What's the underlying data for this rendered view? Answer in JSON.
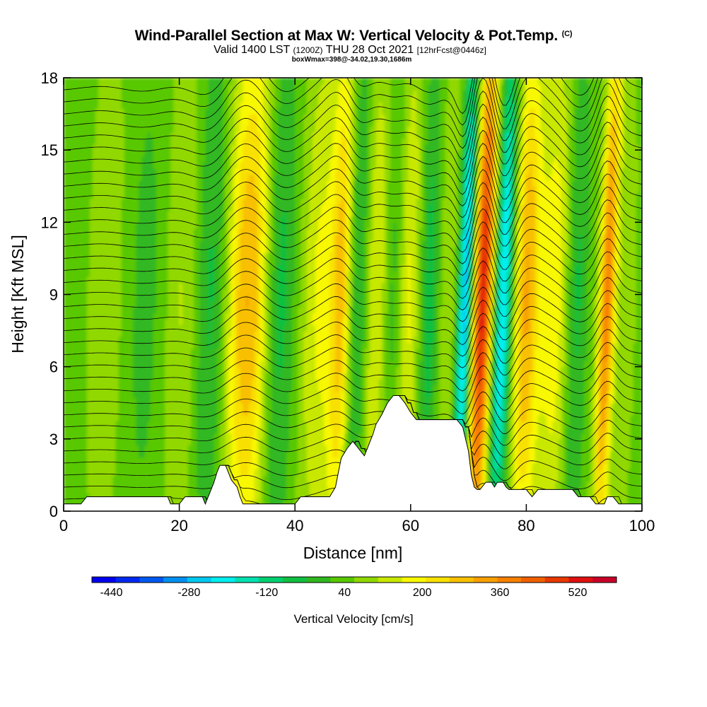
{
  "title": {
    "main": "Wind-Parallel Section at Max W: Vertical Velocity & Pot.Temp.",
    "copyright": "(C)",
    "valid_prefix": "Valid 1400 LST",
    "utc": "(1200Z)",
    "date": "THU 28 Oct 2021",
    "forecast": "[12hrFcst@0446z]",
    "box_info": "boxWmax=398@-34.02,19.30,1686m"
  },
  "chart_data": {
    "type": "heatmap",
    "xlabel": "Distance [nm]",
    "ylabel": "Height [Kft MSL]",
    "xlim": [
      0,
      100
    ],
    "ylim": [
      0,
      18
    ],
    "x_ticks": [
      "0",
      "20",
      "40",
      "60",
      "80",
      "100"
    ],
    "y_ticks": [
      "0",
      "3",
      "6",
      "9",
      "12",
      "15",
      "18"
    ],
    "colorbar": {
      "label": "Vertical Velocity [cm/s]",
      "tick_labels": [
        "-440",
        "-280",
        "-120",
        "40",
        "200",
        "360",
        "520"
      ],
      "tick_values": [
        -440,
        -280,
        -120,
        40,
        200,
        360,
        520
      ],
      "min": -480,
      "max": 600,
      "colors": [
        "#0000ee",
        "#0028f0",
        "#0058f0",
        "#0090f0",
        "#00c8f0",
        "#00eeee",
        "#00e0b0",
        "#00d070",
        "#10c040",
        "#30b820",
        "#58c800",
        "#90d800",
        "#c8e800",
        "#f8f800",
        "#f8e000",
        "#f8c000",
        "#f8a000",
        "#f88000",
        "#f06000",
        "#e83800",
        "#e01010",
        "#c80028"
      ]
    },
    "terrain_kft": [
      [
        0,
        0.3
      ],
      [
        3,
        0.3
      ],
      [
        4,
        0.6
      ],
      [
        18,
        0.6
      ],
      [
        18.5,
        0.3
      ],
      [
        20,
        0.3
      ],
      [
        21,
        0.6
      ],
      [
        24,
        0.6
      ],
      [
        24.5,
        0.3
      ],
      [
        25,
        0.6
      ],
      [
        25.5,
        0.9
      ],
      [
        26,
        1.2
      ],
      [
        26.5,
        1.6
      ],
      [
        27,
        1.9
      ],
      [
        28,
        1.9
      ],
      [
        28.5,
        1.6
      ],
      [
        29,
        1.3
      ],
      [
        30,
        1.0
      ],
      [
        30.5,
        0.6
      ],
      [
        31,
        0.3
      ],
      [
        36,
        0.3
      ],
      [
        40,
        0.3
      ],
      [
        41,
        0.6
      ],
      [
        46,
        0.6
      ],
      [
        47,
        1.0
      ],
      [
        47.5,
        1.6
      ],
      [
        48,
        2.2
      ],
      [
        49,
        2.6
      ],
      [
        50,
        2.9
      ],
      [
        51,
        2.6
      ],
      [
        52,
        2.3
      ],
      [
        52.5,
        2.6
      ],
      [
        53,
        2.9
      ],
      [
        53.5,
        3.2
      ],
      [
        54,
        3.6
      ],
      [
        55,
        4.0
      ],
      [
        56,
        4.5
      ],
      [
        57,
        4.8
      ],
      [
        58,
        4.8
      ],
      [
        59,
        4.5
      ],
      [
        60,
        4.1
      ],
      [
        61,
        3.8
      ],
      [
        62,
        3.8
      ],
      [
        68,
        3.8
      ],
      [
        69,
        3.5
      ],
      [
        70,
        2.5
      ],
      [
        70.5,
        1.5
      ],
      [
        71,
        1.0
      ],
      [
        71.5,
        0.9
      ],
      [
        72,
        0.9
      ],
      [
        73,
        1.2
      ],
      [
        74,
        1.2
      ],
      [
        74.5,
        1.0
      ],
      [
        75,
        1.2
      ],
      [
        76,
        1.2
      ],
      [
        76.5,
        1.0
      ],
      [
        77,
        0.9
      ],
      [
        80,
        0.9
      ],
      [
        81,
        0.6
      ],
      [
        82,
        0.9
      ],
      [
        86,
        0.9
      ],
      [
        88,
        0.9
      ],
      [
        89,
        0.6
      ],
      [
        91,
        0.6
      ],
      [
        92,
        0.3
      ],
      [
        93.5,
        0.3
      ],
      [
        94,
        0.6
      ],
      [
        95,
        0.6
      ],
      [
        96,
        0.3
      ],
      [
        100,
        0.3
      ]
    ],
    "w_features": [
      {
        "x": 1,
        "w": 6,
        "v": -10
      },
      {
        "x": 8,
        "w": 4,
        "v": 60
      },
      {
        "x": 14,
        "w": 5,
        "v": -60
      },
      {
        "x": 21,
        "w": 4,
        "v": 90
      },
      {
        "x": 25,
        "w": 3,
        "v": -120
      },
      {
        "x": 30,
        "w": 2.5,
        "v": 120
      },
      {
        "x": 33,
        "w": 3,
        "v": 230
      },
      {
        "x": 37,
        "w": 3,
        "v": -120
      },
      {
        "x": 44,
        "w": 3,
        "v": 120
      },
      {
        "x": 48,
        "w": 2,
        "v": 230
      },
      {
        "x": 51,
        "w": 2,
        "v": -160
      },
      {
        "x": 54,
        "w": 3,
        "v": 140
      },
      {
        "x": 57,
        "w": 2,
        "v": -150
      },
      {
        "x": 60,
        "w": 3,
        "v": 170
      },
      {
        "x": 63,
        "w": 2.5,
        "v": -170
      },
      {
        "x": 66,
        "w": 2,
        "v": 90
      },
      {
        "x": 69.5,
        "w": 1.3,
        "v": -330
      },
      {
        "x": 72.5,
        "w": 1.8,
        "v": 470
      },
      {
        "x": 76,
        "w": 1.6,
        "v": -300
      },
      {
        "x": 80,
        "w": 2.2,
        "v": 260
      },
      {
        "x": 85,
        "w": 3,
        "v": 150
      },
      {
        "x": 88.5,
        "w": 2,
        "v": -120
      },
      {
        "x": 94,
        "w": 1.4,
        "v": 330
      },
      {
        "x": 97,
        "w": 2,
        "v": 40
      }
    ],
    "theta_levels": 36
  }
}
